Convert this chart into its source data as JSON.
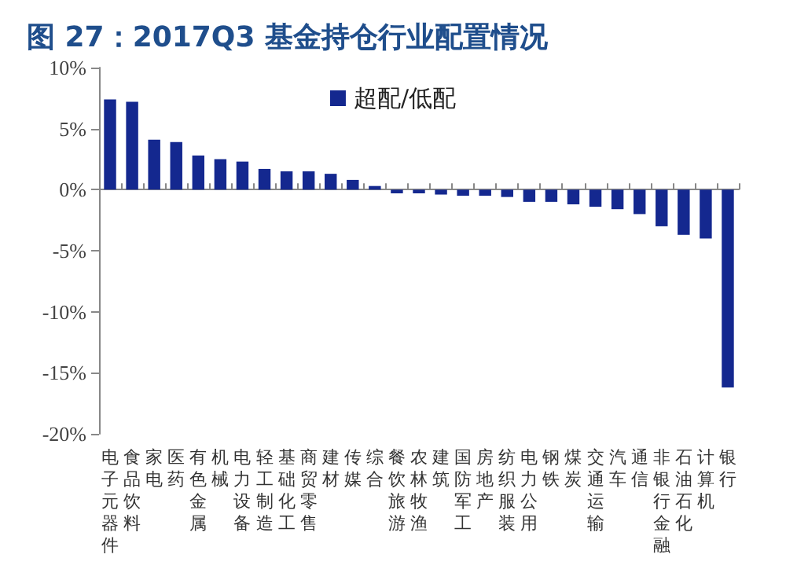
{
  "chart_data": {
    "type": "bar",
    "title": "图 27：2017Q3 基金持仓行业配置情况",
    "categories": [
      "电子元器件",
      "食品饮料",
      "家电",
      "医药",
      "有色金属",
      "机械",
      "电力设备",
      "轻工制造",
      "基础化工",
      "商贸零售",
      "建材",
      "传媒",
      "综合",
      "餐饮旅游",
      "农林牧渔",
      "建筑",
      "国防军工",
      "房地产",
      "纺织服装",
      "电力公用",
      "钢铁",
      "煤炭",
      "交通运输",
      "汽车",
      "通信",
      "非银行金融",
      "石油石化",
      "计算机",
      "银行"
    ],
    "series": [
      {
        "name": "超配/低配",
        "color": "#14288f",
        "values": [
          7.4,
          7.2,
          4.1,
          3.9,
          2.8,
          2.5,
          2.3,
          1.7,
          1.5,
          1.5,
          1.3,
          0.8,
          0.3,
          -0.3,
          -0.3,
          -0.4,
          -0.5,
          -0.5,
          -0.6,
          -1.0,
          -1.0,
          -1.2,
          -1.4,
          -1.6,
          -2.0,
          -3.0,
          -3.7,
          -4.0,
          -16.2
        ]
      }
    ],
    "ylim": [
      -20,
      10
    ],
    "yticks": [
      {
        "value": -20,
        "label": "-20%"
      },
      {
        "value": -15,
        "label": "-15%"
      },
      {
        "value": -10,
        "label": "-10%"
      },
      {
        "value": -5,
        "label": "-5%"
      },
      {
        "value": 0,
        "label": "0%"
      },
      {
        "value": 5,
        "label": "5%"
      },
      {
        "value": 10,
        "label": "10%"
      }
    ],
    "legend": "top"
  }
}
